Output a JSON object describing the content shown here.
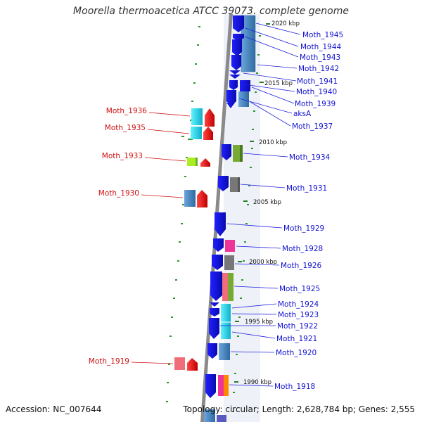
{
  "title": "Moorella thermoacetica ATCC 39073, complete genome",
  "accession": "Accession: NC_007644",
  "info": "Topology: circular; Length: 2,628,784 bp; Genes: 2,555",
  "kbp_labels": [
    {
      "text": "2020 kbp",
      "key": "k2020"
    },
    {
      "text": "2015 kbp",
      "key": "k2015"
    },
    {
      "text": "2010 kbp",
      "key": "k2010"
    },
    {
      "text": "2005 kbp",
      "key": "k2005"
    },
    {
      "text": "2000 kbp",
      "key": "k2000"
    },
    {
      "text": "1995 kbp",
      "key": "k1995"
    },
    {
      "text": "1990 kbp",
      "key": "k1990"
    }
  ],
  "genes_right": [
    {
      "name": "Moth_1945"
    },
    {
      "name": "Moth_1944"
    },
    {
      "name": "Moth_1943"
    },
    {
      "name": "Moth_1942"
    },
    {
      "name": "Moth_1941"
    },
    {
      "name": "Moth_1940"
    },
    {
      "name": "Moth_1939"
    },
    {
      "name": "aksA"
    },
    {
      "name": "Moth_1937"
    },
    {
      "name": "Moth_1934"
    },
    {
      "name": "Moth_1931"
    },
    {
      "name": "Moth_1929"
    },
    {
      "name": "Moth_1928"
    },
    {
      "name": "Moth_1926"
    },
    {
      "name": "Moth_1925"
    },
    {
      "name": "Moth_1924"
    },
    {
      "name": "Moth_1923"
    },
    {
      "name": "Moth_1922"
    },
    {
      "name": "Moth_1921"
    },
    {
      "name": "Moth_1920"
    },
    {
      "name": "Moth_1918"
    }
  ],
  "genes_left": [
    {
      "name": "Moth_1936"
    },
    {
      "name": "Moth_1935"
    },
    {
      "name": "Moth_1933"
    },
    {
      "name": "Moth_1930"
    },
    {
      "name": "Moth_1919"
    }
  ],
  "colors": {
    "blue": "#1a1aee",
    "steel": "#4a86c0",
    "cyan": "#20d8e8",
    "red": "#ee1111",
    "pink": "#ee3399",
    "green": "#77aa33",
    "gray": "#777777",
    "orange": "#ff8800",
    "lime": "#aaee22",
    "salmon": "#ee6f7a",
    "backbone": "#888888",
    "label_blue": "#1010d0",
    "label_red": "#d01010",
    "tick_green": "#2a9a2a"
  }
}
